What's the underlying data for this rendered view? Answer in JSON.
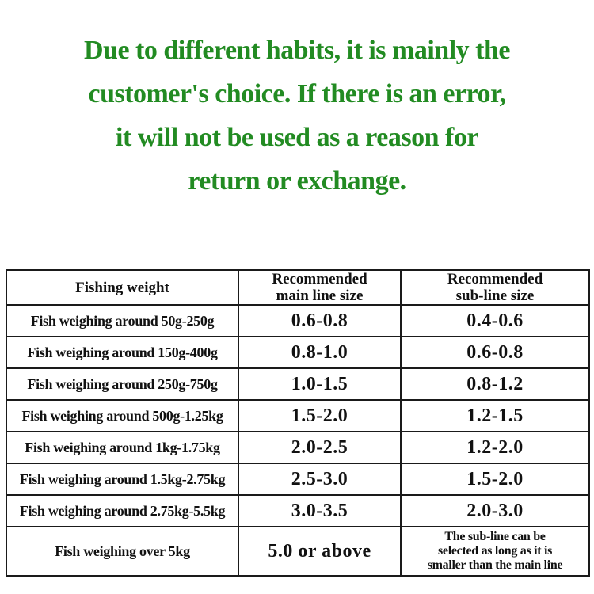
{
  "notice": {
    "color": "#228B22",
    "lines": [
      "Due to different habits, it is mainly the",
      "customer's choice. If there is an error,",
      "it will not be used as a reason for",
      "return or exchange."
    ]
  },
  "table": {
    "headers": {
      "weight": "Fishing weight",
      "main": "Recommended\nmain line size",
      "sub": "Recommended\nsub-line size"
    },
    "rows": [
      {
        "weight": "Fish weighing around 50g-250g",
        "main": "0.6-0.8",
        "sub": "0.4-0.6"
      },
      {
        "weight": "Fish weighing around 150g-400g",
        "main": "0.8-1.0",
        "sub": "0.6-0.8"
      },
      {
        "weight": "Fish weighing around 250g-750g",
        "main": "1.0-1.5",
        "sub": "0.8-1.2"
      },
      {
        "weight": "Fish weighing around 500g-1.25kg",
        "main": "1.5-2.0",
        "sub": "1.2-1.5"
      },
      {
        "weight": "Fish weighing around 1kg-1.75kg",
        "main": "2.0-2.5",
        "sub": "1.2-2.0"
      },
      {
        "weight": "Fish weighing around 1.5kg-2.75kg",
        "main": "2.5-3.0",
        "sub": "1.5-2.0"
      },
      {
        "weight": "Fish weighing around 2.75kg-5.5kg",
        "main": "3.0-3.5",
        "sub": "2.0-3.0"
      },
      {
        "weight": "Fish weighing over 5kg",
        "main": "5.0 or above",
        "sub": "The sub-line can be\nselected as long as it is\nsmaller than the main line"
      }
    ]
  }
}
